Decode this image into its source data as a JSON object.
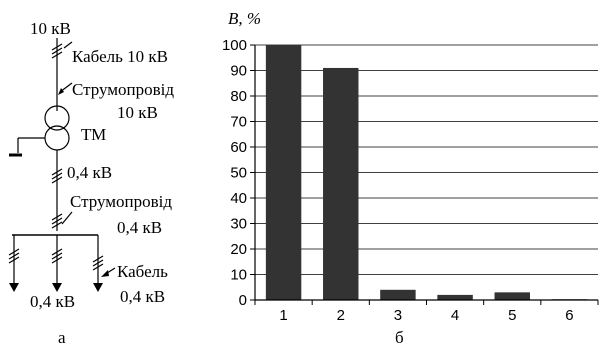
{
  "diagram": {
    "top_voltage": "10 кВ",
    "cable_10": "Кабель 10 кВ",
    "busduct_10_line1": "Струмопровід",
    "busduct_10_line2": "10 кВ",
    "transformer": "ТМ",
    "mid_voltage": "0,4 кВ",
    "busduct_04_line1": "Струмопровід",
    "busduct_04_line2": "0,4 кВ",
    "cable_04_line1": "Кабель",
    "cable_04_line2": "0,4 кВ",
    "bottom_voltage": "0,4 кВ",
    "panel_label": "а"
  },
  "chart_panel_label": "б",
  "colors": {
    "bar": "#333333",
    "grid": "#000000",
    "text": "#000000"
  },
  "chart_data": {
    "type": "bar",
    "title": "",
    "ylabel": "B, %",
    "xlabel": "",
    "categories": [
      "1",
      "2",
      "3",
      "4",
      "5",
      "6"
    ],
    "values": [
      100,
      91,
      4,
      2,
      3,
      0.3
    ],
    "ylim": [
      0,
      100
    ],
    "yticks": [
      "0",
      "10",
      "20",
      "30",
      "40",
      "50",
      "60",
      "70",
      "80",
      "90",
      "100"
    ],
    "grid": true
  }
}
